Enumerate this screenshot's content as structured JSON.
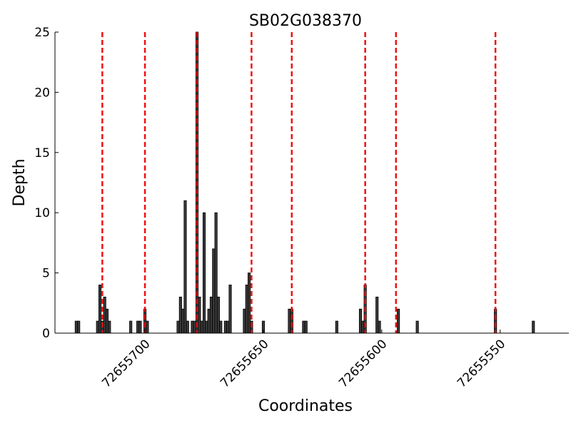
{
  "chart_data": {
    "type": "bar",
    "title": "SB02G038370",
    "xlabel": "Coordinates",
    "ylabel": "Depth",
    "x": [
      72655729,
      72655728,
      72655720,
      72655719,
      72655718,
      72655717,
      72655716,
      72655715,
      72655706,
      72655703,
      72655702,
      72655700,
      72655699,
      72655686,
      72655685,
      72655684,
      72655683,
      72655682,
      72655680,
      72655679,
      72655678,
      72655677,
      72655676,
      72655675,
      72655674,
      72655673,
      72655672,
      72655671,
      72655670,
      72655669,
      72655668,
      72655666,
      72655665,
      72655664,
      72655658,
      72655657,
      72655656,
      72655655,
      72655650,
      72655639,
      72655638,
      72655633,
      72655632,
      72655619,
      72655609,
      72655608,
      72655607,
      72655602,
      72655601,
      72655593,
      72655585,
      72655552,
      72655536
    ],
    "values": [
      1,
      1,
      1,
      4,
      1,
      3,
      2,
      1,
      1,
      1,
      1,
      2,
      1,
      1,
      3,
      2,
      11,
      1,
      1,
      1,
      25,
      3,
      1,
      10,
      1,
      2,
      3,
      7,
      10,
      3,
      1,
      1,
      1,
      4,
      2,
      4,
      5,
      1,
      1,
      2,
      2,
      1,
      1,
      1,
      2,
      1,
      4,
      3,
      1,
      2,
      1,
      2,
      1
    ],
    "color": "#3a3a3a",
    "vlines": [
      72655718,
      72655700,
      72655678,
      72655655,
      72655638,
      72655607,
      72655594,
      72655552
    ],
    "vline_color": "#ee1111",
    "xlim": [
      72655738,
      72655521
    ],
    "xticks": [
      72655700,
      72655650,
      72655600,
      72655550
    ],
    "ylim": [
      0,
      25
    ],
    "yticks": [
      0,
      5,
      10,
      15,
      20,
      25
    ],
    "grid": false
  }
}
